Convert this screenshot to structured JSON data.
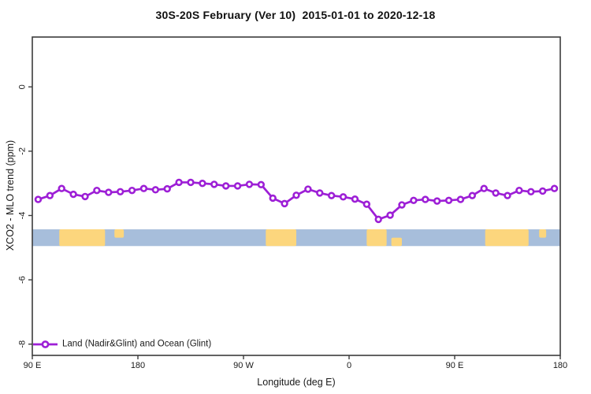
{
  "chart_data": {
    "type": "line",
    "title": "30S-20S February (Ver 10)  2015-01-01 to 2020-12-18",
    "xlabel": "Longitude (deg E)",
    "ylabel": "XCO2 - MLO trend (ppm)",
    "xlim": [
      90,
      540
    ],
    "ylim": [
      -8.35,
      1.55
    ],
    "grid": false,
    "x_ticks": [
      {
        "pos": 90,
        "label": "90 E"
      },
      {
        "pos": 180,
        "label": "180"
      },
      {
        "pos": 270,
        "label": "90 W"
      },
      {
        "pos": 360,
        "label": "0"
      },
      {
        "pos": 450,
        "label": "90 E"
      },
      {
        "pos": 540,
        "label": "180"
      }
    ],
    "y_ticks": [
      0,
      -2,
      -4,
      -6,
      -8
    ],
    "series": [
      {
        "name": "Land (Nadir&Glint) and Ocean (Glint)",
        "color": "#9d1fd6",
        "marker": "open-circle",
        "x": [
          95,
          105,
          115,
          125,
          135,
          145,
          155,
          165,
          175,
          185,
          195,
          205,
          215,
          225,
          235,
          245,
          255,
          265,
          275,
          285,
          295,
          305,
          315,
          325,
          335,
          345,
          355,
          365,
          375,
          385,
          395,
          405,
          415,
          425,
          435,
          445,
          455,
          465,
          475,
          485,
          495,
          505,
          515,
          525,
          535
        ],
        "y": [
          -3.5,
          -3.38,
          -3.16,
          -3.34,
          -3.41,
          -3.22,
          -3.28,
          -3.26,
          -3.22,
          -3.16,
          -3.2,
          -3.17,
          -2.97,
          -2.97,
          -3.0,
          -3.03,
          -3.08,
          -3.08,
          -3.03,
          -3.04,
          -3.46,
          -3.63,
          -3.37,
          -3.18,
          -3.3,
          -3.38,
          -3.42,
          -3.49,
          -3.65,
          -4.12,
          -3.99,
          -3.67,
          -3.53,
          -3.5,
          -3.55,
          -3.53,
          -3.5,
          -3.38,
          -3.16,
          -3.3,
          -3.38,
          -3.22,
          -3.26,
          -3.24,
          -3.16
        ]
      }
    ],
    "legend": {
      "position": "bottom-left",
      "label": "Land (Nadir&Glint) and Ocean (Glint)"
    },
    "map_band": {
      "description": "land-ocean strip for 30S-20S latitude band",
      "y_top": -4.43,
      "y_bottom": -4.95,
      "ocean_color": "#a7bedb",
      "land_color": "#fcd67d",
      "land_segments": [
        {
          "name": "australia",
          "from": 113,
          "to": 152,
          "part": "full"
        },
        {
          "name": "new-caledonia",
          "from": 160,
          "to": 168,
          "part": "top"
        },
        {
          "name": "south-america",
          "from": 289,
          "to": 315,
          "part": "full"
        },
        {
          "name": "africa",
          "from": 375,
          "to": 392,
          "part": "full"
        },
        {
          "name": "madagascar",
          "from": 396,
          "to": 405,
          "part": "bottom"
        },
        {
          "name": "australia-2",
          "from": 476,
          "to": 513,
          "part": "full"
        },
        {
          "name": "new-caledonia-2",
          "from": 522,
          "to": 528,
          "part": "top"
        }
      ]
    },
    "frame_color": "#3c3c3c",
    "background": "#ffffff"
  }
}
